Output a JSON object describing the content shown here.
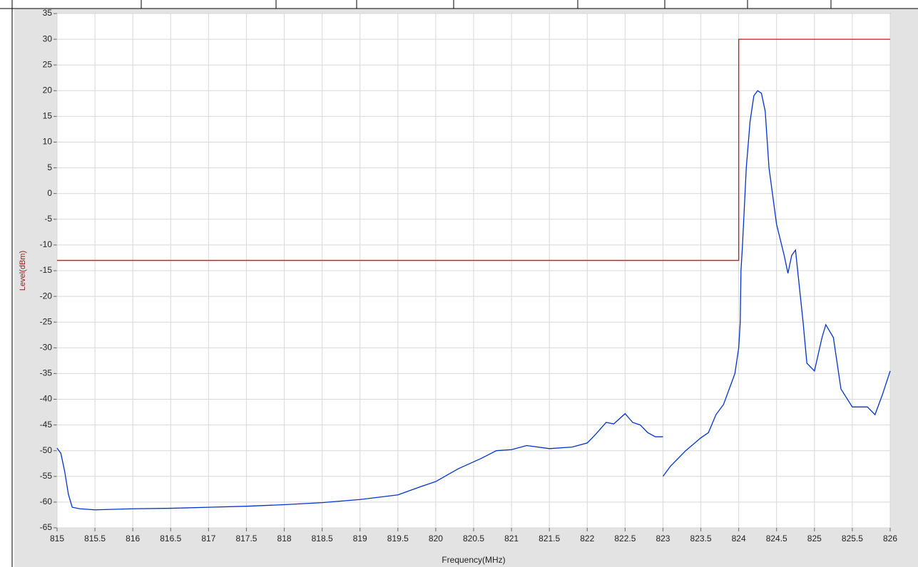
{
  "chart_data": {
    "type": "line",
    "xlabel": "Frequency(MHz)",
    "ylabel": "Level(dBm)",
    "xlim": [
      815,
      826
    ],
    "ylim": [
      -65,
      35
    ],
    "xticks": [
      815,
      815.5,
      816,
      816.5,
      817,
      817.5,
      818,
      818.5,
      819,
      819.5,
      820,
      820.5,
      821,
      821.5,
      822,
      822.5,
      823,
      823.5,
      824,
      824.5,
      825,
      825.5,
      826
    ],
    "yticks": [
      35,
      30,
      25,
      20,
      15,
      10,
      5,
      0,
      -5,
      -10,
      -15,
      -20,
      -25,
      -30,
      -35,
      -40,
      -45,
      -50,
      -55,
      -60,
      -65
    ],
    "grid": true,
    "series": [
      {
        "color": "#0033cc",
        "x": [
          815,
          815.05,
          815.1,
          815.15,
          815.2,
          815.3,
          815.5,
          816,
          816.5,
          817,
          817.5,
          818,
          818.5,
          819,
          819.5,
          819.8,
          820,
          820.3,
          820.6,
          820.8,
          821,
          821.2,
          821.5,
          821.8,
          822,
          822.1,
          822.25,
          822.35,
          822.5,
          822.6,
          822.7,
          822.8,
          822.9,
          823,
          823,
          823,
          823.1,
          823.3,
          823.5,
          823.6,
          823.7,
          823.8,
          823.9,
          823.95,
          824,
          824.02,
          824.03,
          824.05,
          824.1,
          824.15,
          824.2,
          824.25,
          824.3,
          824.35,
          824.4,
          824.5,
          824.6,
          824.65,
          824.7,
          824.75,
          824.8,
          824.85,
          824.9,
          825,
          825.1,
          825.15,
          825.25,
          825.35,
          825.5,
          825.7,
          825.8,
          825.9,
          826
        ],
        "values": [
          -49.5,
          -50.5,
          -54,
          -58.5,
          -61,
          -61.3,
          -61.5,
          -61.3,
          -61.2,
          -61,
          -60.8,
          -60.5,
          -60.1,
          -59.5,
          -58.6,
          -57,
          -56,
          -53.5,
          -51.5,
          -50,
          -49.8,
          -49,
          -49.6,
          -49.3,
          -48.5,
          -47,
          -44.5,
          -44.8,
          -42.8,
          -44.5,
          -45,
          -46.5,
          -47.3,
          -47.3,
          null,
          -55,
          -53,
          -50,
          -47.5,
          -46.5,
          -43,
          -41,
          -37,
          -35,
          -30,
          -25,
          -15,
          -10,
          5,
          14,
          19,
          20,
          19.5,
          16,
          5,
          -6,
          -12,
          -15.5,
          -12,
          -11,
          -18,
          -25,
          -33,
          -34.5,
          -28,
          -25.5,
          -28,
          -38,
          -41.5,
          -41.5,
          -43,
          -39,
          -34.5
        ]
      },
      {
        "color": "#ff0000",
        "x": [
          815,
          824,
          824,
          826
        ],
        "values": [
          -13,
          -13,
          30,
          30
        ]
      }
    ]
  }
}
